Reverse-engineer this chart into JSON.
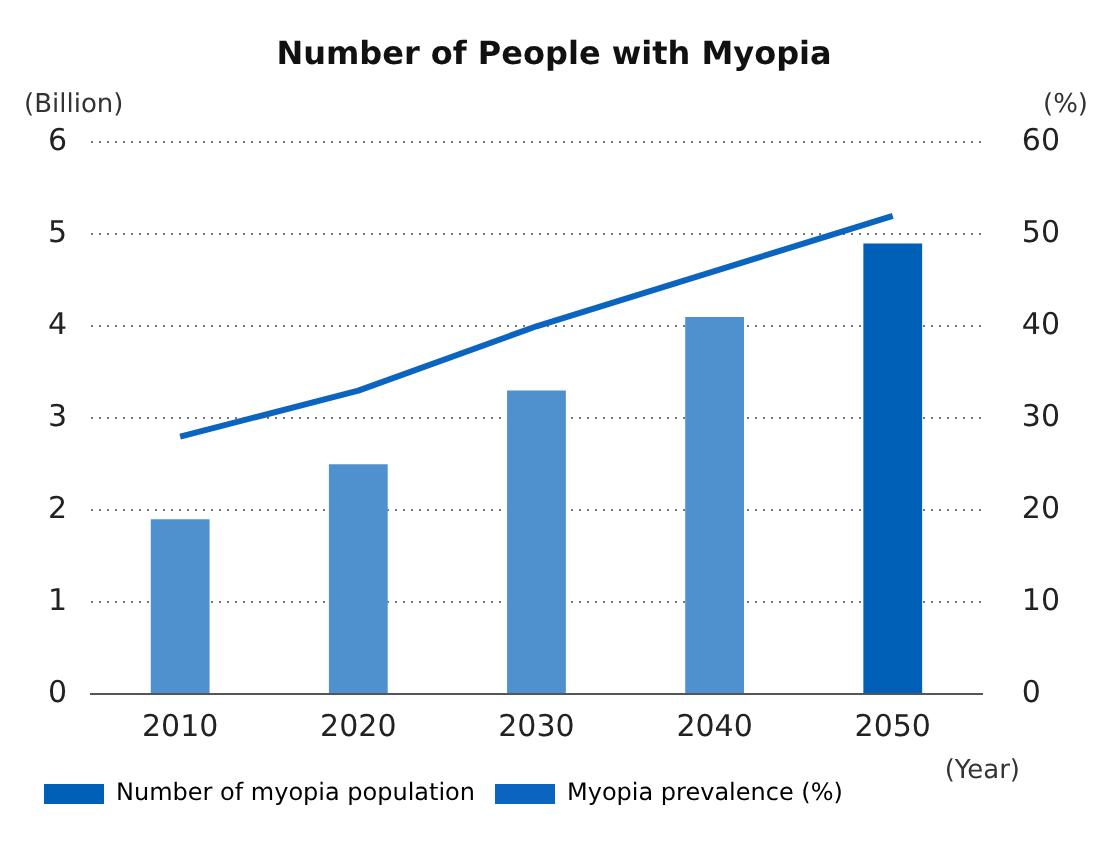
{
  "chart_data": {
    "type": "bar",
    "title": "Number of People with Myopia",
    "xlabel": "(Year)",
    "ylabel": "(Billion)",
    "y2label": "(%)",
    "categories": [
      "2010",
      "2020",
      "2030",
      "2040",
      "2050"
    ],
    "series": [
      {
        "name": "Number of myopia population",
        "color": "#0060b8",
        "colors": [
          "#4f91cf",
          "#4f91cf",
          "#4f91cf",
          "#4f91cf",
          "#0060b8"
        ],
        "values": [
          1.9,
          2.5,
          3.3,
          4.1,
          4.9
        ]
      },
      {
        "name": "Myopia prevalence (%)",
        "type": "line",
        "axis": "y2",
        "color": "#0a64c0",
        "values": [
          28,
          33,
          40,
          46,
          52
        ]
      }
    ],
    "ylim": [
      0,
      6
    ],
    "yticks": [
      0,
      1,
      2,
      3,
      4,
      5,
      6
    ],
    "y2lim": [
      0,
      60
    ],
    "y2ticks": [
      0,
      10,
      20,
      30,
      40,
      50,
      60
    ],
    "grid": "y",
    "legend": "bottom",
    "marker": "none"
  }
}
